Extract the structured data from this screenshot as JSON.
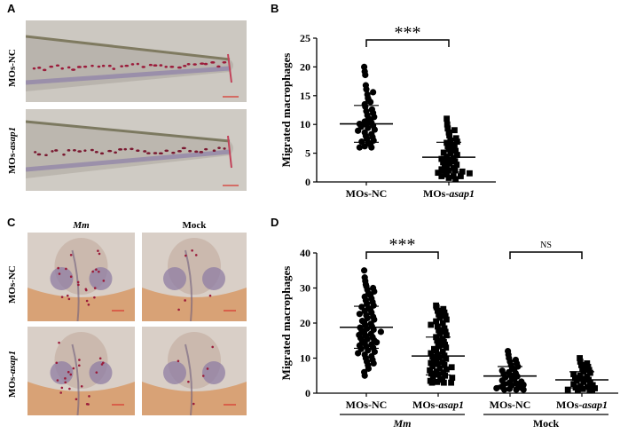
{
  "panels": {
    "A": {
      "letter": "A",
      "row_labels": [
        "MOs-NC",
        "MOs-asap1"
      ],
      "row_label_parts": [
        [
          "MOs-NC",
          ""
        ],
        [
          "MOs-",
          "asap1"
        ]
      ]
    },
    "B": {
      "letter": "B"
    },
    "C": {
      "letter": "C",
      "col_labels": [
        "Mm",
        "Mock"
      ],
      "row_labels": [
        "MOs-NC",
        "MOs-asap1"
      ],
      "row_label_parts": [
        [
          "MOs-NC",
          ""
        ],
        [
          "MOs-",
          "asap1"
        ]
      ]
    },
    "D": {
      "letter": "D"
    }
  },
  "colors": {
    "tail_bg": "#c9c4bd",
    "tail_body": "#b8b3ab",
    "head_bg": "#d9cfc7",
    "head_skin": "#d8a276",
    "macrophage": "#9b1b3a",
    "scale_bar": "#d8352d"
  },
  "chart_data": [
    {
      "type": "scatter",
      "ylabel": "Migrated macrophages",
      "ylim": [
        0,
        25
      ],
      "yticks": [
        0,
        5,
        10,
        15,
        20,
        25
      ],
      "categories": [
        "MOs-NC",
        "MOs-asap1"
      ],
      "category_parts": [
        [
          "MOs-NC",
          ""
        ],
        [
          "MOs-",
          "asap1"
        ]
      ],
      "markers": [
        "circle",
        "square"
      ],
      "series": [
        {
          "values": [
            20,
            19.2,
            18.6,
            16.8,
            16.1,
            15.6,
            15.2,
            14.6,
            14.3,
            13.9,
            13.5,
            13.1,
            12.6,
            12.3,
            12,
            11.6,
            11.3,
            11,
            10.7,
            10.5,
            10.3,
            10.1,
            10,
            9.8,
            9.6,
            9.4,
            9.1,
            8.9,
            8.6,
            8.3,
            8,
            7.8,
            7.5,
            7.2,
            7,
            6.8,
            6.5,
            6.2,
            6,
            6
          ],
          "mean": 10.1,
          "sd": 3.2
        },
        {
          "values": [
            11,
            10,
            9.3,
            9,
            8.6,
            8.1,
            7.6,
            7.2,
            7,
            6.8,
            6.5,
            6.2,
            6,
            5.7,
            5.4,
            5.1,
            5,
            4.7,
            4.4,
            4.2,
            4,
            3.8,
            3.6,
            3.4,
            3.2,
            3,
            2.8,
            2.6,
            2.4,
            2.2,
            2,
            2,
            2,
            1.8,
            1.6,
            1.5,
            1.3,
            1,
            1,
            1,
            0.7,
            0.5
          ],
          "mean": 4.3,
          "sd": 2.6
        }
      ],
      "significance": [
        {
          "between": [
            0,
            1
          ],
          "label": "***"
        }
      ]
    },
    {
      "type": "scatter",
      "ylabel": "Migrated macrophages",
      "ylim": [
        0,
        40
      ],
      "yticks": [
        0,
        10,
        20,
        30,
        40
      ],
      "categories": [
        "MOs-NC",
        "MOs-asap1",
        "MOs-NC",
        "MOs-asap1"
      ],
      "category_parts": [
        [
          "MOs-NC",
          ""
        ],
        [
          "MOs-",
          "asap1"
        ],
        [
          "MOs-NC",
          ""
        ],
        [
          "MOs-",
          "asap1"
        ]
      ],
      "groups": [
        {
          "label": "Mm",
          "italic": true,
          "categories": [
            0,
            1
          ]
        },
        {
          "label": "Mock",
          "italic": false,
          "categories": [
            2,
            3
          ]
        }
      ],
      "markers": [
        "circle",
        "square",
        "circle",
        "square"
      ],
      "series": [
        {
          "values": [
            35,
            33,
            32,
            31,
            30.5,
            30,
            29.5,
            29,
            28.4,
            28,
            27.5,
            27,
            26.5,
            26,
            25.5,
            25,
            24.6,
            24.2,
            23.8,
            23.4,
            23,
            22.6,
            22.2,
            21.8,
            21.4,
            21,
            20.6,
            20.2,
            19.8,
            19.4,
            19,
            18.7,
            18.4,
            18.1,
            17.8,
            17.5,
            17.2,
            16.9,
            16.6,
            16.3,
            16,
            15.7,
            15.4,
            15.1,
            14.8,
            14.5,
            14.2,
            13.9,
            13.6,
            13.3,
            13,
            12.6,
            12.2,
            11.8,
            11.4,
            11,
            10.5,
            10,
            9.5,
            9,
            8.5,
            8,
            7,
            6,
            5
          ],
          "mean": 18.8,
          "sd": 6.0
        },
        {
          "values": [
            25,
            24.5,
            24,
            23.5,
            23,
            22.5,
            22,
            21.5,
            21,
            20.5,
            20,
            19.5,
            19,
            18.5,
            18,
            17.5,
            17,
            16.5,
            16,
            15.5,
            15,
            14.6,
            14.2,
            13.8,
            13.4,
            13,
            12.6,
            12.2,
            11.8,
            11.4,
            11,
            10.7,
            10.4,
            10.1,
            9.8,
            9.5,
            9.2,
            8.9,
            8.6,
            8.3,
            8,
            7.7,
            7.4,
            7.1,
            6.8,
            6.5,
            6.2,
            5.9,
            5.6,
            5.3,
            5,
            4.7,
            4.4,
            4.1,
            3.8,
            3.5,
            3.2,
            3,
            3,
            3
          ],
          "mean": 10.6,
          "sd": 5.4
        },
        {
          "values": [
            12,
            11,
            10,
            9.5,
            9,
            8.5,
            8,
            7.6,
            7.2,
            6.8,
            6.4,
            6,
            5.7,
            5.4,
            5.1,
            4.8,
            4.5,
            4.2,
            3.9,
            3.6,
            3.3,
            3,
            2.8,
            2.6,
            2.4,
            2.2,
            2,
            1.8,
            1.6,
            1.4,
            1.2,
            1,
            1,
            1
          ],
          "mean": 4.9,
          "sd": 2.7
        },
        {
          "values": [
            10,
            9,
            8.5,
            8,
            7.5,
            7,
            6.6,
            6.2,
            5.8,
            5.4,
            5,
            4.7,
            4.4,
            4.1,
            3.8,
            3.5,
            3.2,
            2.9,
            2.6,
            2.3,
            2,
            1.8,
            1.6,
            1.4,
            1.2,
            1,
            1,
            1,
            1
          ],
          "mean": 3.8,
          "sd": 2.3
        }
      ],
      "significance": [
        {
          "between": [
            0,
            1
          ],
          "label": "***"
        },
        {
          "between": [
            2,
            3
          ],
          "label": "NS"
        }
      ]
    }
  ]
}
